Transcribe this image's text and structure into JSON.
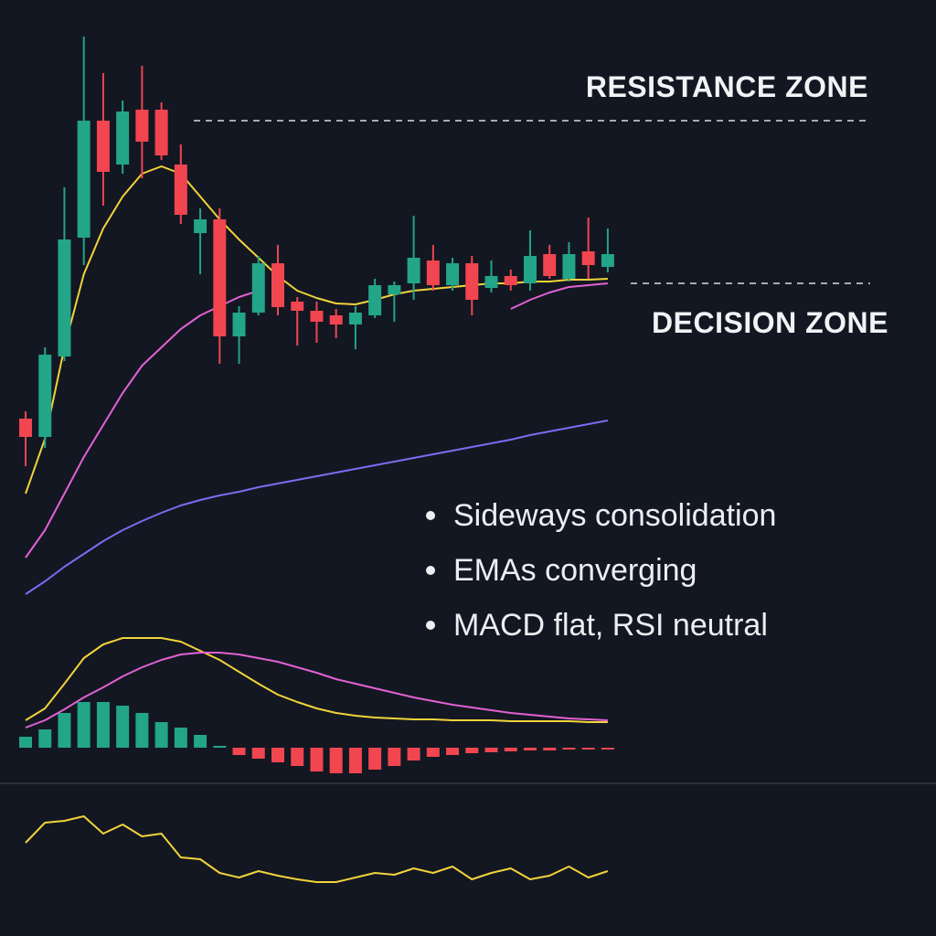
{
  "chart_data": [
    {
      "type": "candlestick",
      "ylim": [
        0,
        700
      ],
      "open": [
        242,
        222,
        310,
        440,
        568,
        520,
        580,
        580,
        520,
        445,
        460,
        332,
        358,
        412,
        370,
        360,
        355,
        345,
        355,
        378,
        390,
        415,
        388,
        412,
        385,
        398,
        390,
        422,
        395,
        425,
        408
      ],
      "close": [
        222,
        312,
        438,
        568,
        512,
        578,
        545,
        530,
        465,
        460,
        332,
        358,
        412,
        364,
        360,
        348,
        345,
        358,
        388,
        388,
        418,
        388,
        412,
        372,
        398,
        388,
        420,
        398,
        422,
        410,
        422
      ],
      "high": [
        250,
        320,
        495,
        660,
        620,
        590,
        628,
        588,
        542,
        472,
        472,
        365,
        420,
        432,
        375,
        370,
        362,
        365,
        395,
        392,
        464,
        432,
        418,
        420,
        415,
        405,
        448,
        432,
        435,
        462,
        450
      ],
      "low": [
        190,
        210,
        305,
        410,
        475,
        510,
        505,
        525,
        455,
        400,
        302,
        302,
        355,
        355,
        322,
        325,
        330,
        318,
        352,
        348,
        372,
        382,
        382,
        355,
        380,
        382,
        382,
        395,
        392,
        395,
        402
      ],
      "up_color": "#22a589",
      "down_color": "#f1454f",
      "series": [
        {
          "color": "#7a6cf0",
          "values": [
            50,
            64,
            80,
            94,
            108,
            120,
            130,
            139,
            147,
            153,
            158,
            162,
            167,
            171,
            175,
            179,
            183,
            187,
            191,
            195,
            199,
            203,
            207,
            211,
            215,
            219,
            224,
            228,
            232,
            236,
            240
          ]
        },
        {
          "color": "#e261d3",
          "values": [
            90,
            120,
            160,
            200,
            235,
            270,
            300,
            320,
            340,
            355,
            365,
            375,
            382,
            null,
            null,
            null,
            null,
            null,
            null,
            null,
            null,
            null,
            null,
            null,
            null,
            362,
            372,
            380,
            386,
            388,
            390
          ]
        },
        {
          "color": "#f2d33a",
          "values": [
            160,
            220,
            320,
            400,
            450,
            485,
            510,
            518,
            510,
            485,
            460,
            438,
            418,
            398,
            382,
            374,
            368,
            367,
            372,
            378,
            382,
            384,
            386,
            388,
            390,
            390,
            392,
            392,
            394,
            394,
            395
          ]
        }
      ],
      "annotations": [
        {
          "text": "RESISTANCE ZONE",
          "value": 568
        },
        {
          "text": "DECISION ZONE",
          "value": 390
        }
      ],
      "notes": [
        "Sideways consolidation",
        "EMAs converging",
        "MACD flat, RSI neutral"
      ]
    },
    {
      "type": "macd",
      "ylim": [
        -32,
        138
      ],
      "values": [
        12,
        20,
        38,
        50,
        50,
        46,
        38,
        28,
        22,
        14,
        2,
        -8,
        -12,
        -16,
        -20,
        -26,
        -28,
        -28,
        -24,
        -20,
        -14,
        -10,
        -8,
        -6,
        -5,
        -4,
        -3,
        -3,
        -2,
        -2,
        -2
      ],
      "up_color": "#22a589",
      "down_color": "#f1454f",
      "series": [
        {
          "color": "#f2d33a",
          "values": [
            30,
            43,
            70,
            98,
            113,
            120,
            120,
            120,
            116,
            106,
            96,
            83,
            70,
            58,
            50,
            43,
            38,
            35,
            33,
            32,
            31,
            31,
            30,
            30,
            30,
            29,
            29,
            29,
            29,
            28,
            28
          ]
        },
        {
          "color": "#e261d3",
          "values": [
            22,
            30,
            42,
            55,
            66,
            78,
            88,
            96,
            102,
            104,
            104,
            102,
            98,
            94,
            88,
            82,
            75,
            70,
            65,
            60,
            55,
            51,
            47,
            44,
            41,
            38,
            36,
            34,
            32,
            31,
            30
          ]
        }
      ]
    },
    {
      "type": "line",
      "ylim": [
        0,
        164
      ],
      "color": "#f2d33a",
      "values": [
        102,
        124,
        126,
        131,
        112,
        122,
        109,
        112,
        86,
        84,
        69,
        64,
        71,
        66,
        62,
        59,
        59,
        64,
        69,
        67,
        74,
        69,
        76,
        62,
        69,
        74,
        62,
        66,
        76,
        64,
        71
      ]
    }
  ]
}
